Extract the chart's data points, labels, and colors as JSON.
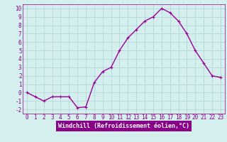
{
  "hours": [
    0,
    1,
    2,
    3,
    4,
    5,
    6,
    7,
    8,
    9,
    10,
    11,
    12,
    13,
    14,
    15,
    16,
    17,
    18,
    19,
    20,
    21,
    22,
    23
  ],
  "values": [
    0,
    -0.5,
    -1.0,
    -0.5,
    -0.5,
    -0.5,
    -1.8,
    -1.7,
    1.2,
    2.5,
    3.0,
    5.0,
    6.5,
    7.5,
    8.5,
    9.0,
    10.0,
    9.5,
    8.5,
    7.0,
    5.0,
    3.5,
    2.0,
    1.8
  ],
  "line_color": "#990099",
  "marker": "P",
  "background_color": "#d5eeee",
  "grid_color": "#aed4d4",
  "plot_bg_color": "#d5eeee",
  "xlabel": "Windchill (Refroidissement éolien,°C)",
  "xlim": [
    -0.5,
    23.5
  ],
  "ylim": [
    -2.5,
    10.5
  ],
  "yticks": [
    -2,
    -1,
    0,
    1,
    2,
    3,
    4,
    5,
    6,
    7,
    8,
    9,
    10
  ],
  "xticks": [
    0,
    1,
    2,
    3,
    4,
    5,
    6,
    7,
    8,
    9,
    10,
    11,
    12,
    13,
    14,
    15,
    16,
    17,
    18,
    19,
    20,
    21,
    22,
    23
  ],
  "font_color": "#880088",
  "font_size": 5.5,
  "xlabel_fontsize": 6.0,
  "marker_size": 3,
  "line_width": 1.0,
  "spine_color": "#880088",
  "label_bg": "#880088"
}
